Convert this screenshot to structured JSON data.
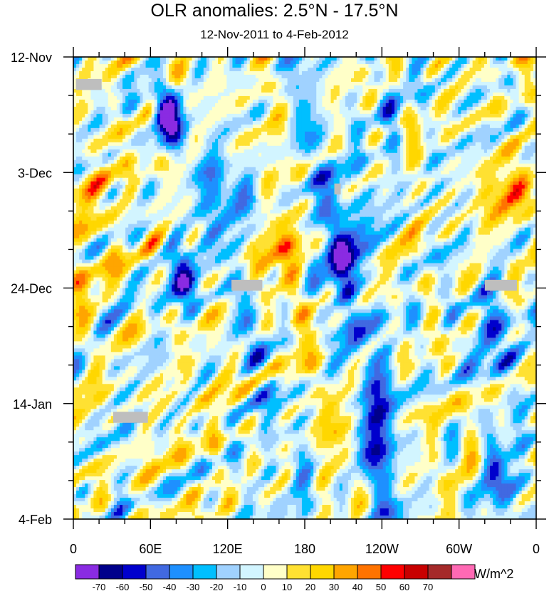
{
  "chart_data": {
    "type": "heatmap",
    "title": "OLR anomalies: 2.5°N - 17.5°N",
    "subtitle": "12-Nov-2011 to 4-Feb-2012",
    "x_ticks": [
      {
        "label": "0",
        "lon": 0
      },
      {
        "label": "60E",
        "lon": 60
      },
      {
        "label": "120E",
        "lon": 120
      },
      {
        "label": "180",
        "lon": 180
      },
      {
        "label": "120W",
        "lon": 240
      },
      {
        "label": "60W",
        "lon": 300
      },
      {
        "label": "0",
        "lon": 360
      }
    ],
    "xlim": [
      0,
      360
    ],
    "y_ticks": [
      {
        "label": "12-Nov",
        "day": 0
      },
      {
        "label": "3-Dec",
        "day": 21
      },
      {
        "label": "24-Dec",
        "day": 42
      },
      {
        "label": "14-Jan",
        "day": 63
      },
      {
        "label": "4-Feb",
        "day": 84
      }
    ],
    "ylim": [
      0,
      84
    ],
    "colorbar": {
      "colors": [
        "#8a2be2",
        "#00008b",
        "#0000cd",
        "#4169e1",
        "#1e90ff",
        "#00bfff",
        "#a0d2ff",
        "#d2f5ff",
        "#ffffc8",
        "#ffe132",
        "#ffd700",
        "#ffa500",
        "#ff7300",
        "#ff0000",
        "#c80000",
        "#a52a2a",
        "#ff69b4"
      ],
      "labels": [
        "-70",
        "-60",
        "-50",
        "-40",
        "-30",
        "-20",
        "-10",
        "0",
        "10",
        "20",
        "30",
        "40",
        "50",
        "60",
        "70"
      ],
      "units": "W/m^2"
    },
    "features": [
      {
        "lon0": 60,
        "lon1": 90,
        "day0": 0,
        "day1": 6,
        "value": 35
      },
      {
        "lon0": 55,
        "lon1": 85,
        "day0": 6,
        "day1": 15,
        "value": -50
      },
      {
        "lon0": 75,
        "lon1": 95,
        "day0": 18,
        "day1": 26,
        "value": 35
      },
      {
        "lon0": 105,
        "lon1": 145,
        "day0": 20,
        "day1": 30,
        "value": -45
      },
      {
        "lon0": 75,
        "lon1": 100,
        "day0": 36,
        "day1": 46,
        "value": -55
      },
      {
        "lon0": 140,
        "lon1": 180,
        "day0": 26,
        "day1": 44,
        "value": 25
      },
      {
        "lon0": 160,
        "lon1": 215,
        "day0": 42,
        "day1": 84,
        "value": 22
      },
      {
        "lon0": 195,
        "lon1": 225,
        "day0": 24,
        "day1": 46,
        "value": -40
      },
      {
        "lon0": 220,
        "lon1": 250,
        "day0": 50,
        "day1": 80,
        "value": -35
      },
      {
        "lon0": 310,
        "lon1": 340,
        "day0": 40,
        "day1": 60,
        "value": -45
      },
      {
        "lon0": 320,
        "lon1": 360,
        "day0": 20,
        "day1": 30,
        "value": 35
      },
      {
        "lon0": 320,
        "lon1": 345,
        "day0": 70,
        "day1": 84,
        "value": -45
      },
      {
        "lon0": 0,
        "lon1": 30,
        "day0": 15,
        "day1": 40,
        "value": 15
      }
    ],
    "missing_regions": [
      {
        "lon0": 2,
        "lon1": 22,
        "day0": 4,
        "day1": 6
      },
      {
        "lon0": 123,
        "lon1": 147,
        "day0": 40.5,
        "day1": 42.5
      },
      {
        "lon0": 203,
        "lon1": 208,
        "day0": 23,
        "day1": 25
      },
      {
        "lon0": 320,
        "lon1": 345,
        "day0": 40.5,
        "day1": 42.5
      },
      {
        "lon0": 31,
        "lon1": 58,
        "day0": 64.5,
        "day1": 66.5
      }
    ]
  }
}
